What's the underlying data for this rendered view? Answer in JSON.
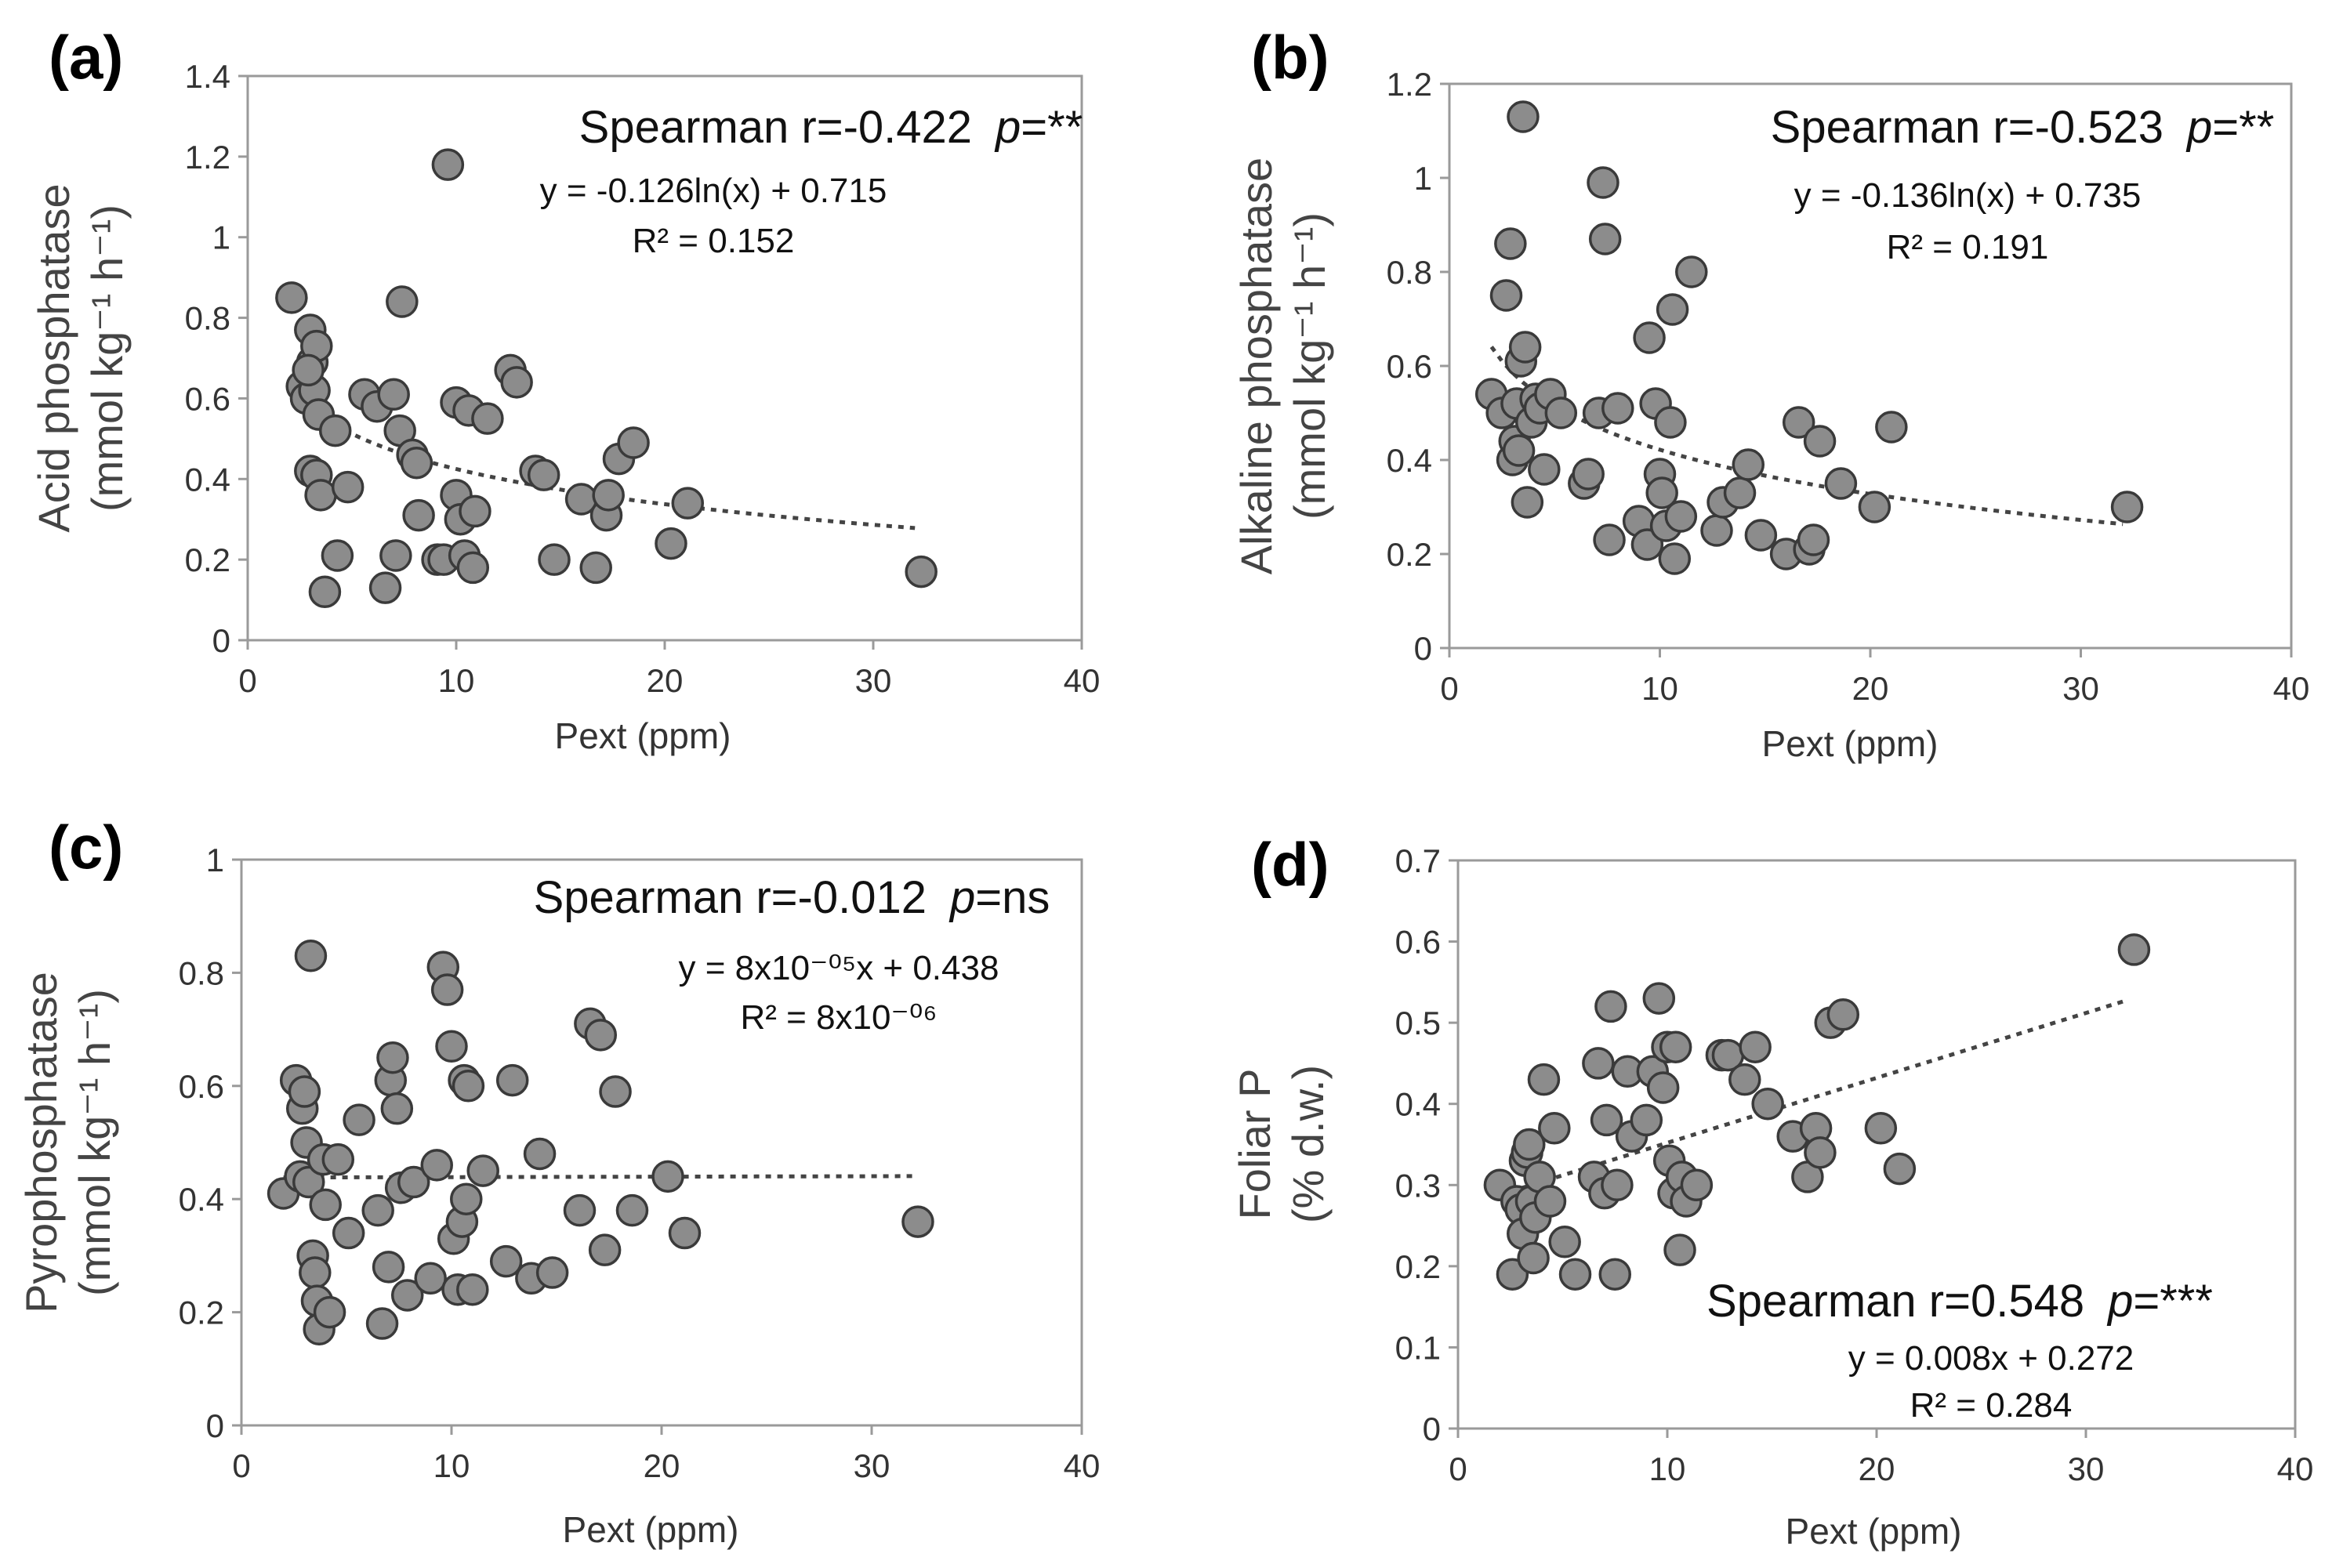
{
  "chart_data": [
    {
      "panel": "(a)",
      "type": "scatter",
      "xlabel": "Pext (ppm)",
      "ylabel": [
        "Acid phosphatase",
        "(mmol kg⁻¹ h⁻¹)"
      ],
      "xlim": [
        0,
        40
      ],
      "ylim": [
        0,
        1.4
      ],
      "xticks": [
        "0",
        "10",
        "20",
        "30",
        "40"
      ],
      "yticks": [
        "0",
        "0.2",
        "0.4",
        "0.6",
        "0.8",
        "1",
        "1.2",
        "1.4"
      ],
      "stat_prefix": "Spearman r=-0.422",
      "stat_p_symbol": "p",
      "stat_p_value": "=**",
      "equation": "y = -0.126ln(x) + 0.715",
      "r2": "R² = 0.152",
      "trend": {
        "type": "log",
        "a": -0.126,
        "b": 0.715,
        "x_range": [
          2,
          32
        ]
      },
      "points": [
        [
          2.1,
          0.85
        ],
        [
          2.6,
          0.63
        ],
        [
          2.8,
          0.6
        ],
        [
          3.0,
          0.77
        ],
        [
          3.1,
          0.69
        ],
        [
          3.3,
          0.73
        ],
        [
          3.2,
          0.62
        ],
        [
          2.9,
          0.67
        ],
        [
          3.4,
          0.56
        ],
        [
          3.0,
          0.42
        ],
        [
          3.3,
          0.41
        ],
        [
          3.5,
          0.36
        ],
        [
          3.7,
          0.12
        ],
        [
          4.2,
          0.52
        ],
        [
          4.3,
          0.21
        ],
        [
          4.8,
          0.38
        ],
        [
          5.6,
          0.61
        ],
        [
          6.2,
          0.58
        ],
        [
          6.6,
          0.13
        ],
        [
          7.0,
          0.61
        ],
        [
          7.1,
          0.21
        ],
        [
          7.3,
          0.52
        ],
        [
          7.4,
          0.84
        ],
        [
          7.9,
          0.46
        ],
        [
          8.1,
          0.44
        ],
        [
          8.2,
          0.31
        ],
        [
          9.1,
          0.2
        ],
        [
          9.4,
          0.2
        ],
        [
          9.6,
          1.18
        ],
        [
          10.0,
          0.59
        ],
        [
          10.0,
          0.36
        ],
        [
          10.2,
          0.3
        ],
        [
          10.4,
          0.21
        ],
        [
          10.6,
          0.57
        ],
        [
          10.8,
          0.18
        ],
        [
          10.9,
          0.32
        ],
        [
          11.5,
          0.55
        ],
        [
          12.6,
          0.67
        ],
        [
          12.9,
          0.64
        ],
        [
          13.8,
          0.42
        ],
        [
          14.2,
          0.41
        ],
        [
          14.7,
          0.2
        ],
        [
          16.0,
          0.35
        ],
        [
          16.7,
          0.18
        ],
        [
          17.2,
          0.31
        ],
        [
          17.3,
          0.36
        ],
        [
          17.8,
          0.45
        ],
        [
          18.5,
          0.49
        ],
        [
          20.3,
          0.24
        ],
        [
          21.1,
          0.34
        ],
        [
          32.3,
          0.17
        ]
      ]
    },
    {
      "panel": "(b)",
      "type": "scatter",
      "xlabel": "Pext (ppm)",
      "ylabel": [
        "Alkaline phosphatase",
        "(mmol kg⁻¹ h⁻¹)"
      ],
      "xlim": [
        0,
        40
      ],
      "ylim": [
        0,
        1.2
      ],
      "xticks": [
        "0",
        "10",
        "20",
        "30",
        "40"
      ],
      "yticks": [
        "0",
        "0.2",
        "0.4",
        "0.6",
        "0.8",
        "1",
        "1.2"
      ],
      "stat_prefix": "Spearman r=-0.523",
      "stat_p_symbol": "p",
      "stat_p_value": "=**",
      "equation": "y = -0.136ln(x) + 0.735",
      "r2": "R² = 0.191",
      "trend": {
        "type": "log",
        "a": -0.136,
        "b": 0.735,
        "x_range": [
          2,
          32
        ]
      },
      "points": [
        [
          2.0,
          0.54
        ],
        [
          2.5,
          0.5
        ],
        [
          2.7,
          0.75
        ],
        [
          2.9,
          0.86
        ],
        [
          3.0,
          0.4
        ],
        [
          3.1,
          0.44
        ],
        [
          3.2,
          0.52
        ],
        [
          3.3,
          0.42
        ],
        [
          3.4,
          0.61
        ],
        [
          3.5,
          1.13
        ],
        [
          3.6,
          0.64
        ],
        [
          3.7,
          0.31
        ],
        [
          3.9,
          0.48
        ],
        [
          4.1,
          0.53
        ],
        [
          4.3,
          0.51
        ],
        [
          4.5,
          0.38
        ],
        [
          4.8,
          0.54
        ],
        [
          5.3,
          0.5
        ],
        [
          6.4,
          0.35
        ],
        [
          6.6,
          0.37
        ],
        [
          7.1,
          0.5
        ],
        [
          7.3,
          0.99
        ],
        [
          7.4,
          0.87
        ],
        [
          7.6,
          0.23
        ],
        [
          8.0,
          0.51
        ],
        [
          9.0,
          0.27
        ],
        [
          9.4,
          0.22
        ],
        [
          9.5,
          0.66
        ],
        [
          9.8,
          0.52
        ],
        [
          10.0,
          0.37
        ],
        [
          10.1,
          0.33
        ],
        [
          10.3,
          0.26
        ],
        [
          10.5,
          0.48
        ],
        [
          10.6,
          0.72
        ],
        [
          10.7,
          0.19
        ],
        [
          11.0,
          0.28
        ],
        [
          11.5,
          0.8
        ],
        [
          12.7,
          0.25
        ],
        [
          13.0,
          0.31
        ],
        [
          13.8,
          0.33
        ],
        [
          14.2,
          0.39
        ],
        [
          14.8,
          0.24
        ],
        [
          16.0,
          0.2
        ],
        [
          16.6,
          0.48
        ],
        [
          17.1,
          0.21
        ],
        [
          17.3,
          0.23
        ],
        [
          17.6,
          0.44
        ],
        [
          18.6,
          0.35
        ],
        [
          20.2,
          0.3
        ],
        [
          21.0,
          0.47
        ],
        [
          32.2,
          0.3
        ]
      ]
    },
    {
      "panel": "(c)",
      "type": "scatter",
      "xlabel": "Pext (ppm)",
      "ylabel": [
        "Pyrophosphatase",
        "(mmol kg⁻¹ h⁻¹)"
      ],
      "xlim": [
        0,
        40
      ],
      "ylim": [
        0,
        1
      ],
      "xticks": [
        "0",
        "10",
        "20",
        "30",
        "40"
      ],
      "yticks": [
        "0",
        "0.2",
        "0.4",
        "0.6",
        "0.8",
        "1"
      ],
      "stat_prefix": "Spearman r=-0.012",
      "stat_p_symbol": "p",
      "stat_p_value": "=ns",
      "equation": "y = 8x10⁻⁰⁵x + 0.438",
      "r2": "R² = 8x10⁻⁰⁶",
      "trend": {
        "type": "linear",
        "a": 8e-05,
        "b": 0.438,
        "x_range": [
          2,
          32
        ]
      },
      "points": [
        [
          2.0,
          0.41
        ],
        [
          2.6,
          0.61
        ],
        [
          2.8,
          0.44
        ],
        [
          2.9,
          0.56
        ],
        [
          3.0,
          0.59
        ],
        [
          3.1,
          0.5
        ],
        [
          3.2,
          0.43
        ],
        [
          3.3,
          0.83
        ],
        [
          3.4,
          0.3
        ],
        [
          3.5,
          0.27
        ],
        [
          3.6,
          0.22
        ],
        [
          3.7,
          0.17
        ],
        [
          3.9,
          0.47
        ],
        [
          4.0,
          0.39
        ],
        [
          4.2,
          0.2
        ],
        [
          4.6,
          0.47
        ],
        [
          5.1,
          0.34
        ],
        [
          5.6,
          0.54
        ],
        [
          6.5,
          0.38
        ],
        [
          6.7,
          0.18
        ],
        [
          7.0,
          0.28
        ],
        [
          7.1,
          0.61
        ],
        [
          7.2,
          0.65
        ],
        [
          7.4,
          0.56
        ],
        [
          7.6,
          0.42
        ],
        [
          7.9,
          0.23
        ],
        [
          8.2,
          0.43
        ],
        [
          9.0,
          0.26
        ],
        [
          9.3,
          0.46
        ],
        [
          9.6,
          0.81
        ],
        [
          9.8,
          0.77
        ],
        [
          10.0,
          0.67
        ],
        [
          10.1,
          0.33
        ],
        [
          10.3,
          0.24
        ],
        [
          10.5,
          0.36
        ],
        [
          10.6,
          0.61
        ],
        [
          10.7,
          0.4
        ],
        [
          10.8,
          0.6
        ],
        [
          11.0,
          0.24
        ],
        [
          11.5,
          0.45
        ],
        [
          12.6,
          0.29
        ],
        [
          12.9,
          0.61
        ],
        [
          13.8,
          0.26
        ],
        [
          14.2,
          0.48
        ],
        [
          14.8,
          0.27
        ],
        [
          16.1,
          0.38
        ],
        [
          16.6,
          0.71
        ],
        [
          17.1,
          0.69
        ],
        [
          17.3,
          0.31
        ],
        [
          17.8,
          0.59
        ],
        [
          18.6,
          0.38
        ],
        [
          20.3,
          0.44
        ],
        [
          21.1,
          0.34
        ],
        [
          32.2,
          0.36
        ]
      ]
    },
    {
      "panel": "(d)",
      "type": "scatter",
      "xlabel": "Pext (ppm)",
      "ylabel": [
        "Foliar P",
        "(% d.w.)"
      ],
      "xlim": [
        0,
        40
      ],
      "ylim": [
        0,
        0.7
      ],
      "xticks": [
        "0",
        "10",
        "20",
        "30",
        "40"
      ],
      "yticks": [
        "0",
        "0.1",
        "0.2",
        "0.3",
        "0.4",
        "0.5",
        "0.6",
        "0.7"
      ],
      "stat_prefix": "Spearman r=0.548",
      "stat_p_symbol": "p",
      "stat_p_value": "=***",
      "equation": "y = 0.008x + 0.272",
      "r2": "R² = 0.284",
      "trend": {
        "type": "linear",
        "a": 0.008,
        "b": 0.272,
        "x_range": [
          2,
          32
        ]
      },
      "points": [
        [
          2.0,
          0.3
        ],
        [
          2.6,
          0.19
        ],
        [
          2.8,
          0.28
        ],
        [
          3.0,
          0.27
        ],
        [
          3.1,
          0.24
        ],
        [
          3.2,
          0.33
        ],
        [
          3.3,
          0.34
        ],
        [
          3.4,
          0.35
        ],
        [
          3.5,
          0.28
        ],
        [
          3.6,
          0.21
        ],
        [
          3.7,
          0.26
        ],
        [
          3.9,
          0.31
        ],
        [
          4.1,
          0.43
        ],
        [
          4.4,
          0.28
        ],
        [
          4.6,
          0.37
        ],
        [
          5.1,
          0.23
        ],
        [
          5.6,
          0.19
        ],
        [
          6.5,
          0.31
        ],
        [
          6.7,
          0.45
        ],
        [
          7.0,
          0.29
        ],
        [
          7.1,
          0.38
        ],
        [
          7.3,
          0.52
        ],
        [
          7.5,
          0.19
        ],
        [
          7.6,
          0.3
        ],
        [
          8.1,
          0.44
        ],
        [
          8.3,
          0.36
        ],
        [
          9.0,
          0.38
        ],
        [
          9.3,
          0.44
        ],
        [
          9.6,
          0.53
        ],
        [
          9.8,
          0.42
        ],
        [
          10.0,
          0.47
        ],
        [
          10.1,
          0.33
        ],
        [
          10.3,
          0.29
        ],
        [
          10.4,
          0.47
        ],
        [
          10.6,
          0.22
        ],
        [
          10.7,
          0.31
        ],
        [
          10.9,
          0.28
        ],
        [
          11.4,
          0.3
        ],
        [
          12.6,
          0.46
        ],
        [
          12.9,
          0.46
        ],
        [
          13.7,
          0.43
        ],
        [
          14.2,
          0.47
        ],
        [
          14.8,
          0.4
        ],
        [
          16.0,
          0.36
        ],
        [
          16.7,
          0.31
        ],
        [
          17.1,
          0.37
        ],
        [
          17.3,
          0.34
        ],
        [
          17.8,
          0.5
        ],
        [
          18.4,
          0.51
        ],
        [
          20.2,
          0.37
        ],
        [
          21.1,
          0.32
        ],
        [
          32.3,
          0.59
        ]
      ]
    }
  ]
}
